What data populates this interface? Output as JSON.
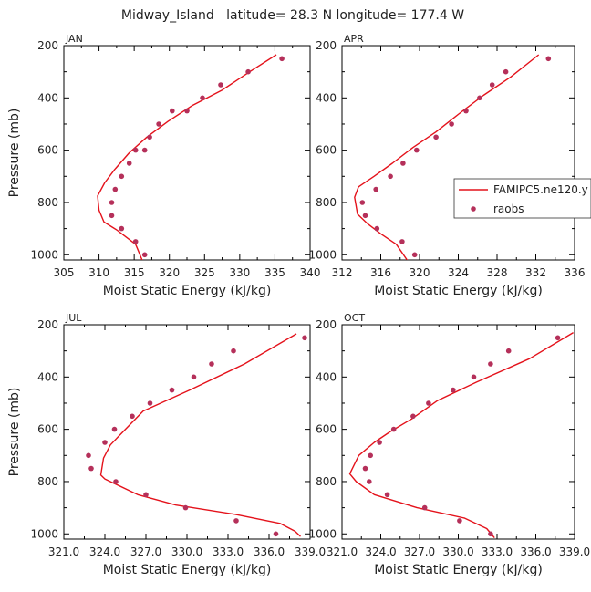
{
  "title": "Midway_Island   latitude= 28.3 N longitude= 177.4 W",
  "legend": {
    "model_label": "FAMIPC5.ne120.y",
    "obs_label": "raobs"
  },
  "colors": {
    "model": "#e4121b",
    "obs": "#b5305a",
    "axis": "#000000"
  },
  "chart_data": [
    {
      "type": "line",
      "panel_title": "JAN",
      "xlabel": "Moist Static Energy (kJ/kg)",
      "ylabel": "Pressure (mb)",
      "xlim": [
        305,
        340
      ],
      "ylim": [
        1020,
        200
      ],
      "xticks": [
        "305",
        "310",
        "315",
        "320",
        "325",
        "330",
        "335",
        "340"
      ],
      "yticks": [
        "200",
        "400",
        "600",
        "800",
        "1000"
      ],
      "series": [
        {
          "name": "FAMIPC5.ne120.y",
          "kind": "line",
          "x": [
            316.2,
            315.2,
            312.5,
            310.7,
            310.0,
            309.8,
            310.8,
            312.2,
            314.3,
            316.8,
            319.8,
            323.2,
            327.5,
            331.4,
            335.2
          ],
          "y": [
            1025,
            960,
            905,
            875,
            830,
            775,
            725,
            675,
            610,
            550,
            490,
            430,
            370,
            300,
            235
          ]
        },
        {
          "name": "raobs",
          "kind": "scatter",
          "x": [
            316.5,
            315.2,
            313.2,
            311.8,
            311.8,
            312.3,
            313.2,
            314.3,
            315.2,
            316.5,
            317.2,
            318.5,
            320.4,
            322.5,
            324.7,
            327.3,
            331.2,
            336.0
          ],
          "y": [
            1000,
            950,
            900,
            850,
            800,
            750,
            700,
            650,
            600,
            600,
            550,
            500,
            450,
            450,
            400,
            350,
            300,
            250
          ]
        }
      ]
    },
    {
      "type": "line",
      "panel_title": "APR",
      "xlabel": "Moist Static Energy (kJ/kg)",
      "ylabel": "",
      "xlim": [
        312,
        336
      ],
      "ylim": [
        1020,
        200
      ],
      "xticks": [
        "312",
        "316",
        "320",
        "324",
        "328",
        "332",
        "336"
      ],
      "yticks": [
        "200",
        "400",
        "600",
        "800",
        "1000"
      ],
      "series": [
        {
          "name": "FAMIPC5.ne120.y",
          "kind": "line",
          "x": [
            318.8,
            317.6,
            316.0,
            314.6,
            313.6,
            313.3,
            313.7,
            315.3,
            317.2,
            319.3,
            321.7,
            324.1,
            326.6,
            329.4,
            332.3
          ],
          "y": [
            1025,
            960,
            920,
            880,
            845,
            780,
            740,
            700,
            650,
            590,
            530,
            460,
            390,
            320,
            235
          ]
        },
        {
          "name": "raobs",
          "kind": "scatter",
          "x": [
            319.5,
            318.2,
            315.6,
            314.4,
            314.1,
            315.5,
            317.0,
            318.3,
            319.7,
            321.7,
            323.3,
            324.8,
            326.2,
            327.5,
            328.9,
            333.3
          ],
          "y": [
            1000,
            950,
            900,
            850,
            800,
            750,
            700,
            650,
            600,
            550,
            500,
            450,
            400,
            350,
            300,
            250
          ]
        }
      ]
    },
    {
      "type": "line",
      "panel_title": "JUL",
      "xlabel": "Moist Static Energy (kJ/kg)",
      "ylabel": "Pressure (mb)",
      "xlim": [
        321,
        339
      ],
      "ylim": [
        1020,
        200
      ],
      "xticks": [
        "321.0",
        "324.0",
        "327.0",
        "330.0",
        "333.0",
        "336.0",
        "339.0"
      ],
      "yticks": [
        "200",
        "400",
        "600",
        "800",
        "1000"
      ],
      "series": [
        {
          "name": "FAMIPC5.ne120.y",
          "kind": "line",
          "x": [
            338.3,
            337.9,
            336.8,
            333.5,
            329.2,
            326.4,
            324.0,
            323.7,
            323.9,
            324.4,
            325.5,
            326.8,
            330.2,
            334.2,
            338.0
          ],
          "y": [
            1010,
            990,
            960,
            925,
            890,
            850,
            790,
            775,
            710,
            660,
            600,
            530,
            450,
            350,
            235
          ]
        },
        {
          "name": "raobs",
          "kind": "scatter",
          "x": [
            336.5,
            333.6,
            329.9,
            327.0,
            324.8,
            323.0,
            322.8,
            324.0,
            324.7,
            326.0,
            327.3,
            328.9,
            330.5,
            331.8,
            333.4,
            338.6
          ],
          "y": [
            1000,
            950,
            900,
            850,
            800,
            750,
            700,
            650,
            600,
            550,
            500,
            450,
            400,
            350,
            300,
            250
          ]
        }
      ]
    },
    {
      "type": "line",
      "panel_title": "OCT",
      "xlabel": "Moist Static Energy (kJ/kg)",
      "ylabel": "",
      "xlim": [
        321,
        339
      ],
      "ylim": [
        1020,
        200
      ],
      "xticks": [
        "321.0",
        "324.0",
        "327.0",
        "330.0",
        "333.0",
        "336.0",
        "339.0"
      ],
      "yticks": [
        "200",
        "400",
        "600",
        "800",
        "1000"
      ],
      "series": [
        {
          "name": "FAMIPC5.ne120.y",
          "kind": "line",
          "x": [
            332.8,
            332.2,
            330.5,
            326.8,
            323.5,
            322.1,
            321.6,
            322.3,
            323.5,
            324.7,
            326.4,
            328.4,
            331.4,
            335.5,
            338.9
          ],
          "y": [
            1015,
            980,
            940,
            900,
            850,
            800,
            770,
            700,
            650,
            610,
            560,
            490,
            420,
            330,
            230
          ]
        },
        {
          "name": "raobs",
          "kind": "scatter",
          "x": [
            332.5,
            330.1,
            327.4,
            324.5,
            323.1,
            322.8,
            323.2,
            323.9,
            325.0,
            326.5,
            327.7,
            329.6,
            331.2,
            332.5,
            333.9,
            337.7
          ],
          "y": [
            1000,
            950,
            900,
            850,
            800,
            750,
            700,
            650,
            600,
            550,
            500,
            450,
            400,
            350,
            300,
            250
          ]
        }
      ]
    }
  ]
}
